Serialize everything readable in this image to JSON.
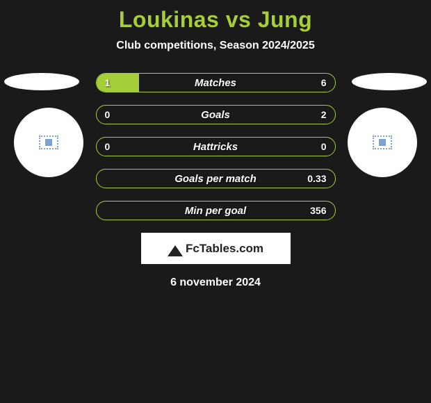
{
  "title": "Loukinas vs Jung",
  "subtitle": "Club competitions, Season 2024/2025",
  "brand": "FcTables.com",
  "date": "6 november 2024",
  "colors": {
    "background": "#1a1a1a",
    "accent": "#a6ce39",
    "text": "#ffffff",
    "brand_bg": "#ffffff",
    "brand_text": "#222222"
  },
  "bars": [
    {
      "label": "Matches",
      "left": "1",
      "right": "6",
      "left_pct": 18,
      "right_pct": 0
    },
    {
      "label": "Goals",
      "left": "0",
      "right": "2",
      "left_pct": 0,
      "right_pct": 0
    },
    {
      "label": "Hattricks",
      "left": "0",
      "right": "0",
      "left_pct": 0,
      "right_pct": 0
    },
    {
      "label": "Goals per match",
      "left": "",
      "right": "0.33",
      "left_pct": 0,
      "right_pct": 0
    },
    {
      "label": "Min per goal",
      "left": "",
      "right": "356",
      "left_pct": 0,
      "right_pct": 0
    }
  ]
}
